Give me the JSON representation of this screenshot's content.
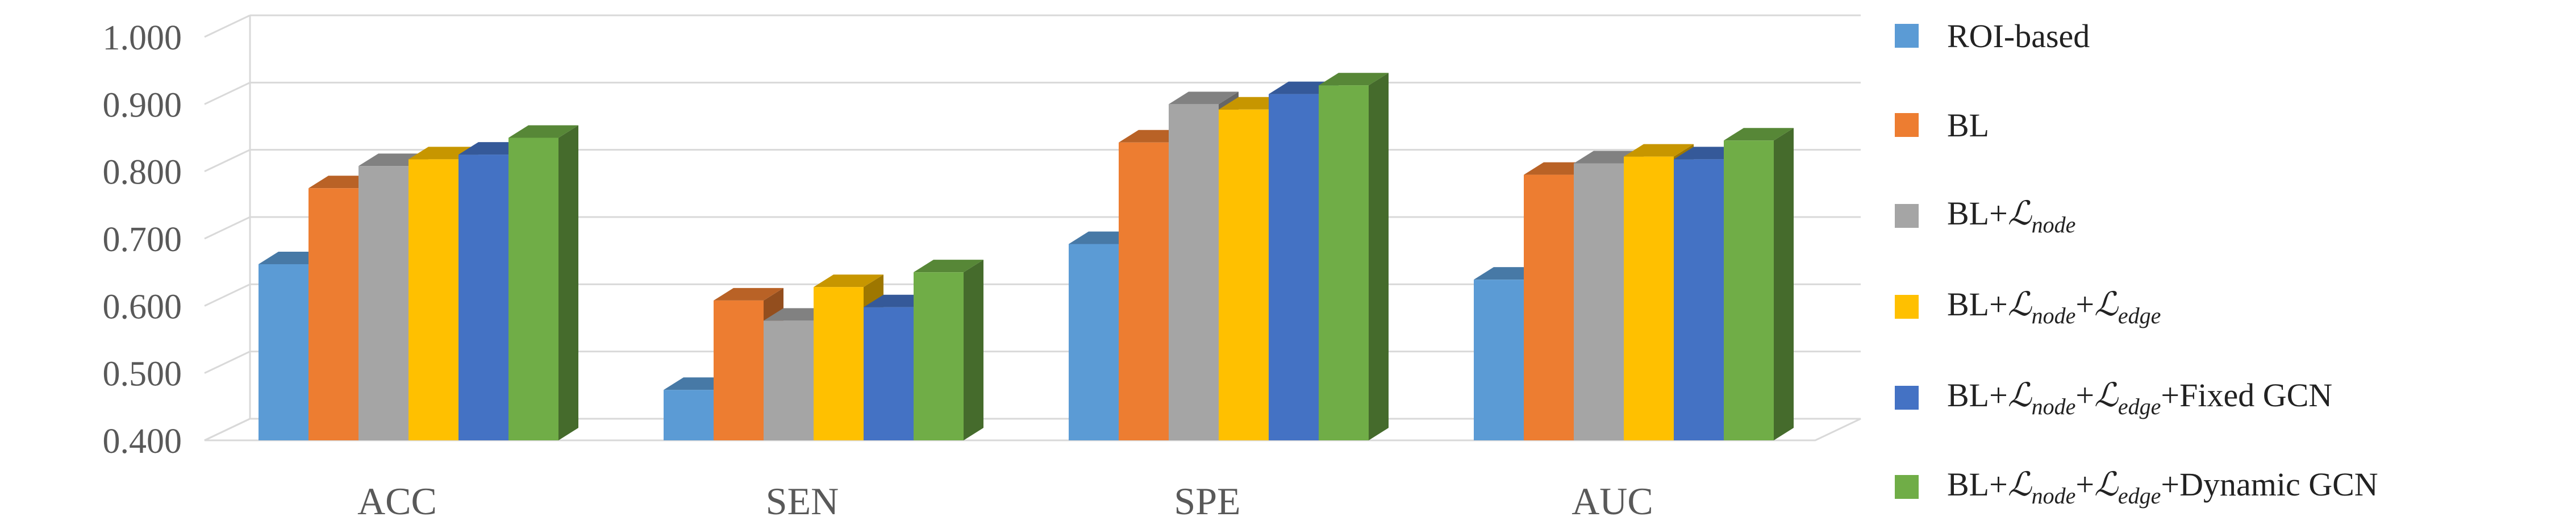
{
  "chart_data": {
    "type": "bar",
    "categories": [
      "ACC",
      "SEN",
      "SPE",
      "AUC"
    ],
    "ylim": [
      0.4,
      1.0
    ],
    "yticks": [
      "0.400",
      "0.500",
      "0.600",
      "0.700",
      "0.800",
      "0.900",
      "1.000"
    ],
    "grid": true,
    "legend_position": "right",
    "series": [
      {
        "name": "ROI-based",
        "color": "#5B9BD5",
        "values": [
          0.662,
          0.475,
          0.692,
          0.639
        ]
      },
      {
        "name": "BL",
        "color": "#ED7D31",
        "values": [
          0.775,
          0.608,
          0.843,
          0.795
        ]
      },
      {
        "name": "BL+ℒnode",
        "color": "#A5A5A5",
        "values": [
          0.808,
          0.578,
          0.9,
          0.812
        ]
      },
      {
        "name": "BL+ℒnode+ℒedge",
        "color": "#FFC000",
        "values": [
          0.818,
          0.628,
          0.892,
          0.822
        ]
      },
      {
        "name": "BL+ℒnode+ℒedge+Fixed GCN",
        "color": "#4472C4",
        "values": [
          0.825,
          0.598,
          0.915,
          0.818
        ]
      },
      {
        "name": "BL+ℒnode+ℒedge+Dynamic GCN",
        "color": "#70AD47",
        "values": [
          0.85,
          0.65,
          0.928,
          0.846
        ]
      }
    ]
  },
  "legend": {
    "items": [
      {
        "prefix": "ROI-based",
        "terms": [],
        "suffix": ""
      },
      {
        "prefix": "BL",
        "terms": [],
        "suffix": ""
      },
      {
        "prefix": "BL+",
        "terms": [
          "node"
        ],
        "suffix": ""
      },
      {
        "prefix": "BL+",
        "terms": [
          "node",
          "edge"
        ],
        "suffix": ""
      },
      {
        "prefix": "BL+",
        "terms": [
          "node",
          "edge"
        ],
        "suffix": "+Fixed GCN"
      },
      {
        "prefix": "BL+",
        "terms": [
          "node",
          "edge"
        ],
        "suffix": "+Dynamic GCN"
      }
    ]
  }
}
